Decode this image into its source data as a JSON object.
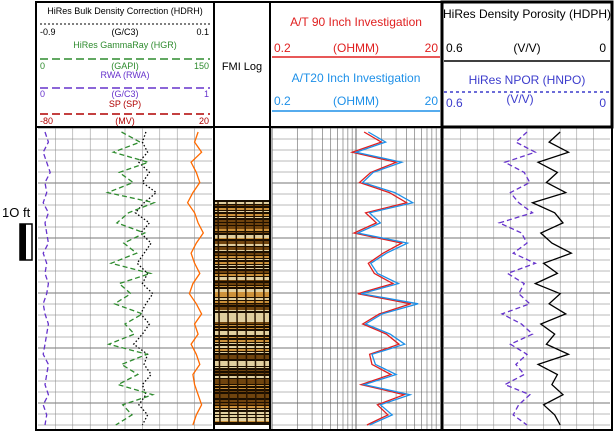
{
  "scale_bar": {
    "label": "1O ft"
  },
  "fmi": {
    "title": "FMI Log"
  },
  "colors": {
    "black": "#000000",
    "green": "#2e8b2e",
    "purple": "#6633cc",
    "red": "#e02020",
    "blue": "#1e90e8",
    "orange": "#ff6a00",
    "dark_red": "#b00000"
  },
  "chart_data": [
    {
      "type": "line",
      "track": "track1",
      "series": [
        {
          "name": "HiRes Bulk Density Correction (HDRH)",
          "unit": "(G/C3)",
          "scale": [
            -0.9,
            0.1
          ],
          "color": "black",
          "style": "dotted",
          "values": [
            -0.28,
            -0.3,
            -0.27,
            -0.32,
            -0.26,
            -0.3,
            -0.22,
            -0.29,
            -0.34,
            -0.26,
            -0.31,
            -0.25,
            -0.29,
            -0.33,
            -0.27,
            -0.3,
            -0.24,
            -0.28,
            -0.31,
            -0.26,
            -0.3,
            -0.35,
            -0.27,
            -0.29,
            -0.25,
            -0.3,
            -0.28,
            -0.32,
            -0.27,
            -0.3
          ]
        },
        {
          "name": "HiRes GammaRay (HGR)",
          "unit": "(GAPI)",
          "scale": [
            0,
            150
          ],
          "color": "green",
          "style": "dashed",
          "values": [
            72,
            88,
            65,
            95,
            70,
            82,
            60,
            100,
            78,
            68,
            92,
            74,
            85,
            63,
            97,
            70,
            80,
            66,
            90,
            75,
            83,
            61,
            94,
            72,
            86,
            69,
            99,
            73,
            81,
            67
          ]
        },
        {
          "name": "RWA (RWA)",
          "unit": "(G/C3)",
          "scale": [
            0,
            1
          ],
          "color": "purple",
          "style": "dashed",
          "values": [
            0.04,
            0.06,
            0.03,
            0.05,
            0.07,
            0.04,
            0.05,
            0.03,
            0.06,
            0.04,
            0.05,
            0.06,
            0.03,
            0.05,
            0.04,
            0.06,
            0.05,
            0.03,
            0.04,
            0.06,
            0.05,
            0.04,
            0.03,
            0.06,
            0.05,
            0.04,
            0.06,
            0.03,
            0.05,
            0.04
          ]
        },
        {
          "name": "SP (SP)",
          "unit": "(MV)",
          "scale": [
            -80,
            20
          ],
          "color": "orange",
          "style": "solid",
          "values": [
            12,
            10,
            14,
            8,
            11,
            13,
            9,
            6,
            10,
            12,
            15,
            11,
            8,
            10,
            13,
            9,
            7,
            11,
            14,
            10,
            12,
            8,
            11,
            13,
            9,
            10,
            12,
            14,
            11,
            9
          ]
        }
      ]
    },
    {
      "type": "line",
      "track": "track2",
      "series": [
        {
          "name": "A/T 90 Inch Investigation",
          "unit": "(OHMM)",
          "scale": [
            "0.2",
            "20"
          ],
          "log_scale": true,
          "color": "red",
          "style": "solid",
          "values": [
            2.5,
            4,
            1.8,
            6,
            3,
            2.2,
            5,
            8,
            2.6,
            3.5,
            1.9,
            7,
            4.2,
            2.8,
            3.3,
            5.5,
            2.1,
            9,
            3.8,
            2.4,
            4.6,
            6.5,
            2.9,
            3.1,
            5.2,
            2.3,
            7.5,
            3.6,
            4.8,
            2.7
          ]
        },
        {
          "name": "A/T20 Inch Investigation",
          "unit": "(OHMM)",
          "scale": [
            "0.2",
            "20"
          ],
          "log_scale": true,
          "color": "blue",
          "style": "solid",
          "values": [
            2.8,
            4.5,
            2,
            7,
            3.2,
            2.4,
            5.8,
            9.5,
            2.9,
            3.9,
            2.1,
            8.2,
            4.6,
            3,
            3.6,
            6.4,
            2.3,
            11,
            4.1,
            2.6,
            5.1,
            7.6,
            3.1,
            3.4,
            6,
            2.5,
            8.8,
            3.9,
            5.4,
            2.9
          ]
        }
      ]
    },
    {
      "type": "line",
      "track": "track3",
      "series": [
        {
          "name": "HiRes Density Porosity (HDPH)",
          "unit": "(V/V)",
          "scale": [
            "0.6",
            "0"
          ],
          "color": "black",
          "style": "solid",
          "values": [
            0.18,
            0.22,
            0.15,
            0.26,
            0.19,
            0.23,
            0.16,
            0.28,
            0.2,
            0.17,
            0.25,
            0.21,
            0.14,
            0.24,
            0.19,
            0.27,
            0.18,
            0.22,
            0.16,
            0.25,
            0.2,
            0.23,
            0.15,
            0.26,
            0.19,
            0.21,
            0.17,
            0.24,
            0.2,
            0.18
          ]
        },
        {
          "name": "HiRes NPOR (HNPO)",
          "unit": "(V/V)",
          "scale": [
            "0.6",
            "0"
          ],
          "color": "purple",
          "style": "dashed",
          "values": [
            0.3,
            0.34,
            0.27,
            0.38,
            0.31,
            0.29,
            0.36,
            0.33,
            0.28,
            0.4,
            0.32,
            0.3,
            0.35,
            0.27,
            0.37,
            0.31,
            0.33,
            0.29,
            0.39,
            0.32,
            0.28,
            0.36,
            0.3,
            0.34,
            0.31,
            0.38,
            0.29,
            0.33,
            0.35,
            0.3
          ]
        }
      ]
    }
  ]
}
